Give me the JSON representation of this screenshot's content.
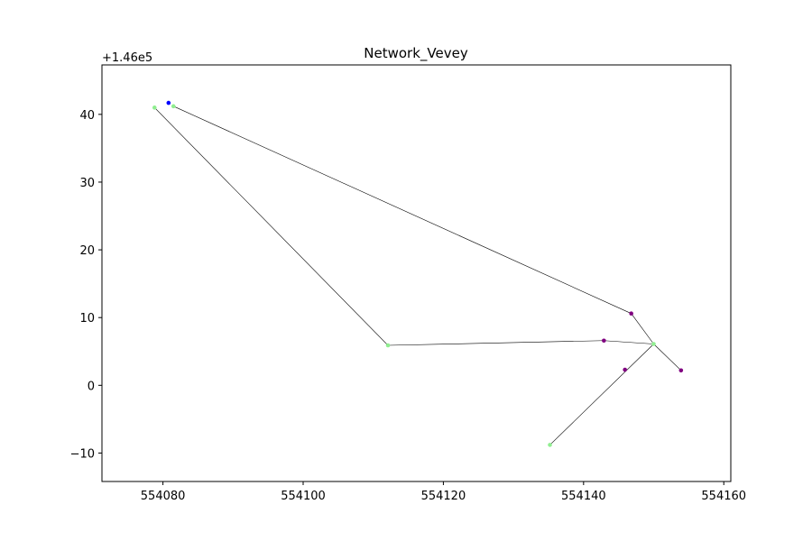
{
  "chart_data": {
    "type": "scatter",
    "title": "Network_Vevey",
    "xlabel": "",
    "ylabel": "",
    "y_offset_label": "+1.46e5",
    "xlim": [
      554071.3,
      554161.0
    ],
    "ylim": [
      -14.2,
      47.3
    ],
    "x_ticks": [
      554080,
      554100,
      554120,
      554140,
      554160
    ],
    "x_tick_labels": [
      "554080",
      "554100",
      "554120",
      "554140",
      "554160"
    ],
    "y_ticks": [
      -10,
      0,
      10,
      20,
      30,
      40
    ],
    "y_tick_labels": [
      "−10",
      "0",
      "10",
      "20",
      "30",
      "40"
    ],
    "grid": false,
    "node_colors": {
      "green": "#90ee90",
      "purple": "#800080",
      "blue": "#0000ff"
    },
    "edge_color": "#000000",
    "nodes": [
      {
        "id": "n1",
        "x": 554080.8,
        "y": 41.7,
        "color": "blue"
      },
      {
        "id": "n2",
        "x": 554078.8,
        "y": 41.0,
        "color": "green"
      },
      {
        "id": "n3",
        "x": 554081.5,
        "y": 41.2,
        "color": "green"
      },
      {
        "id": "n4",
        "x": 554112.1,
        "y": 5.9,
        "color": "green"
      },
      {
        "id": "n5",
        "x": 554142.9,
        "y": 6.6,
        "color": "purple"
      },
      {
        "id": "n6",
        "x": 554146.8,
        "y": 10.6,
        "color": "purple"
      },
      {
        "id": "n7",
        "x": 554150.0,
        "y": 6.1,
        "color": "green"
      },
      {
        "id": "n8",
        "x": 554145.9,
        "y": 2.3,
        "color": "purple"
      },
      {
        "id": "n9",
        "x": 554153.9,
        "y": 2.2,
        "color": "purple"
      },
      {
        "id": "n10",
        "x": 554135.2,
        "y": -8.8,
        "color": "green"
      }
    ],
    "edges": [
      [
        "n2",
        "n4"
      ],
      [
        "n4",
        "n5"
      ],
      [
        "n5",
        "n7"
      ],
      [
        "n3",
        "n6"
      ],
      [
        "n6",
        "n7"
      ],
      [
        "n7",
        "n9"
      ],
      [
        "n7",
        "n10"
      ]
    ]
  }
}
